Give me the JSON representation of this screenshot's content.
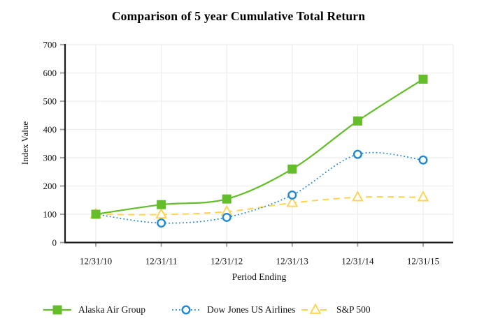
{
  "chart_data": {
    "type": "line",
    "title": "Comparison of 5 year Cumulative Total Return",
    "xlabel": "Period Ending",
    "ylabel": "Index Value",
    "categories": [
      "12/31/10",
      "12/31/11",
      "12/31/12",
      "12/31/13",
      "12/31/14",
      "12/31/15"
    ],
    "ylim": [
      0,
      700
    ],
    "ytick_step": 100,
    "grid": true,
    "legend_position": "bottom",
    "series": [
      {
        "name": "Alaska Air Group",
        "values": [
          100,
          134,
          154,
          260,
          430,
          578
        ],
        "color": "#63BE2A",
        "line_style": "solid",
        "marker": "square"
      },
      {
        "name": "Dow Jones US Airlines",
        "values": [
          100,
          69,
          89,
          168,
          312,
          292
        ],
        "color": "#1E87D6",
        "line_style": "dotted",
        "marker": "circle"
      },
      {
        "name": "S&P 500",
        "values": [
          100,
          99,
          109,
          140,
          160,
          160
        ],
        "color": "#FFD34D",
        "line_style": "dashed",
        "marker": "triangle"
      }
    ]
  },
  "colors": {
    "axis": "#1c1c1c",
    "grid": "#ededed",
    "tick": "#9b9b9b",
    "text": "#111111",
    "background": "#ffffff"
  }
}
